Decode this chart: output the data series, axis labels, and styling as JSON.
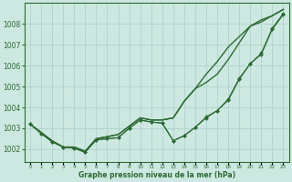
{
  "xlabel": "Graphe pression niveau de la mer (hPa)",
  "xlim": [
    -0.5,
    23.5
  ],
  "ylim": [
    1001.4,
    1009.0
  ],
  "yticks": [
    1002,
    1003,
    1004,
    1005,
    1006,
    1007,
    1008
  ],
  "xticks": [
    0,
    1,
    2,
    3,
    4,
    5,
    6,
    7,
    8,
    9,
    10,
    11,
    12,
    13,
    14,
    15,
    16,
    17,
    18,
    19,
    20,
    21,
    22,
    23
  ],
  "bg_color": "#cce8e0",
  "grid_color": "#aacfc8",
  "line_color": "#2d6a35",
  "s1": [
    1003.2,
    1002.8,
    1002.4,
    1002.1,
    1002.1,
    1001.9,
    1002.5,
    1002.6,
    1002.7,
    1003.1,
    1003.5,
    1003.4,
    1003.4,
    1003.5,
    1004.3,
    1004.9,
    1005.6,
    1006.2,
    1006.9,
    1007.4,
    1007.9,
    1008.1,
    1008.4,
    1008.7
  ],
  "s2": [
    1003.2,
    1002.8,
    1002.4,
    1002.1,
    1002.1,
    1001.9,
    1002.5,
    1002.6,
    1002.7,
    1003.1,
    1003.5,
    1003.4,
    1003.4,
    1003.5,
    1004.3,
    1004.9,
    1005.2,
    1005.6,
    1006.3,
    1007.1,
    1007.9,
    1008.2,
    1008.4,
    1008.7
  ],
  "s3": [
    1003.2,
    1002.75,
    1002.35,
    1002.1,
    1002.05,
    1001.85,
    1002.45,
    1002.5,
    1002.55,
    1003.0,
    1003.4,
    1003.3,
    1003.25,
    1002.4,
    1002.65,
    1003.05,
    1003.55,
    1003.85,
    1004.4,
    1005.4,
    1006.1,
    1006.6,
    1007.8,
    1008.5
  ],
  "s4": [
    1003.2,
    1002.75,
    1002.35,
    1002.1,
    1002.05,
    1001.85,
    1002.45,
    1002.5,
    1002.55,
    1003.0,
    1003.4,
    1003.3,
    1003.25,
    1002.4,
    1002.65,
    1003.05,
    1003.5,
    1003.85,
    1004.35,
    1005.35,
    1006.1,
    1006.55,
    1007.75,
    1008.45
  ]
}
